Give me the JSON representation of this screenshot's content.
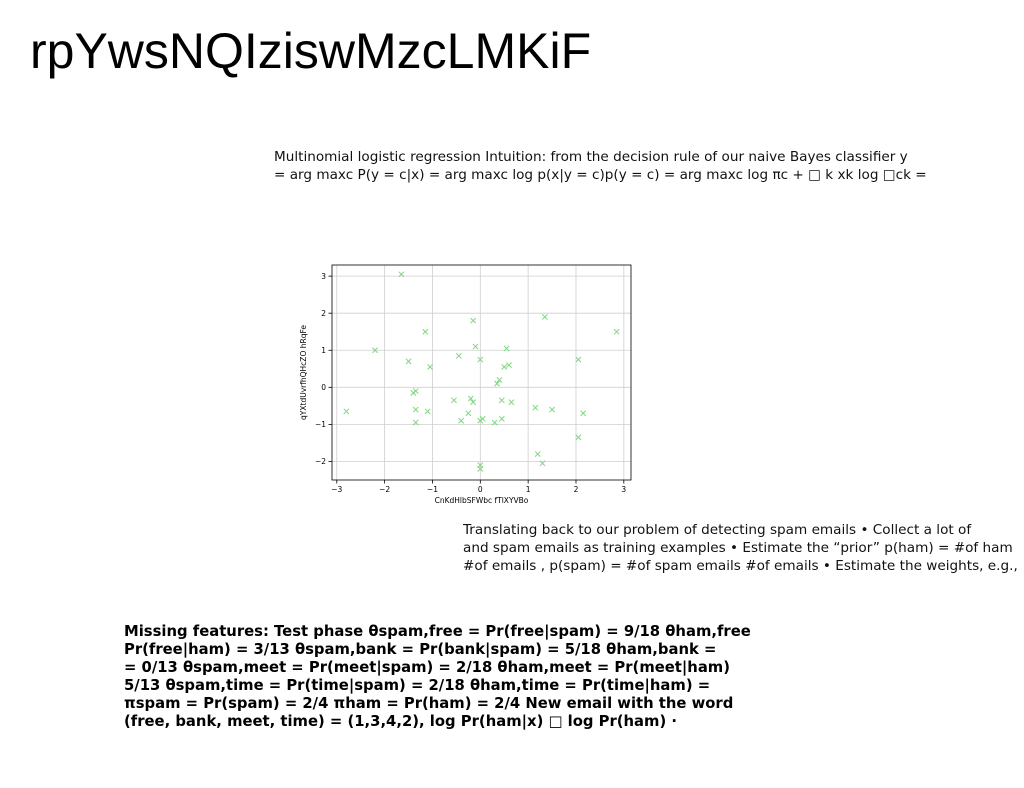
{
  "title": "rpYwsNQIziswMzcLMKiF",
  "paragraphs": {
    "p1": "Multinomial logistic regression Intuition: from the decision rule of our naive Bayes classifier y\n= arg maxc P(y = c|x) = arg maxc log p(x|y = c)p(y = c) = arg maxc log πc + □ k xk log □ck =",
    "p2": "Translating back to our problem of detecting spam emails • Collect a lot of\nand spam emails as training examples • Estimate the “prior” p(ham) = #of ham\n#of emails , p(spam) = #of spam emails #of emails • Estimate the weights, e.g.,",
    "p3": "Missing features: Test phase θspam,free = Pr(free|spam) = 9/18 θham,free\nPr(free|ham) = 3/13 θspam,bank = Pr(bank|spam) = 5/18 θham,bank =\n= 0/13 θspam,meet = Pr(meet|spam) = 2/18 θham,meet = Pr(meet|ham)\n5/13 θspam,time = Pr(time|spam) = 2/18 θham,time = Pr(time|ham) =\nπspam = Pr(spam) = 2/4 πham = Pr(ham) = 2/4 New email with the word\n(free, bank, meet, time) = (1,3,4,2), log Pr(ham|x) □ log Pr(ham) ·"
  },
  "chart_data": {
    "type": "scatter",
    "xlabel": "CnKdHlbSFWbc fTlXYVBo",
    "ylabel": "qYXtdUvrfhQHcZO hRqFe",
    "xlim": [
      -3.1,
      3.15
    ],
    "ylim": [
      -2.5,
      3.3
    ],
    "xticks": [
      -3,
      -2,
      -1,
      0,
      1,
      2,
      3
    ],
    "yticks": [
      -2,
      -1,
      0,
      1,
      2,
      3
    ],
    "xtick_labels": [
      "−3",
      "−2",
      "−1",
      "0",
      "1",
      "2",
      "3"
    ],
    "ytick_labels": [
      "−2",
      "−1",
      "0",
      "1",
      "2",
      "3"
    ],
    "grid": true,
    "marker": "x",
    "color": "#7fd67f",
    "points": [
      {
        "x": -1.65,
        "y": 3.05
      },
      {
        "x": -2.8,
        "y": -0.65
      },
      {
        "x": -2.2,
        "y": 1.0
      },
      {
        "x": -1.5,
        "y": 0.7
      },
      {
        "x": -1.35,
        "y": -0.1
      },
      {
        "x": -1.4,
        "y": -0.15
      },
      {
        "x": -1.35,
        "y": -0.6
      },
      {
        "x": -1.35,
        "y": -0.95
      },
      {
        "x": -1.15,
        "y": 1.5
      },
      {
        "x": -1.1,
        "y": -0.65
      },
      {
        "x": -1.05,
        "y": 0.55
      },
      {
        "x": -0.55,
        "y": -0.35
      },
      {
        "x": -0.45,
        "y": 0.85
      },
      {
        "x": -0.4,
        "y": -0.9
      },
      {
        "x": -0.25,
        "y": -0.7
      },
      {
        "x": -0.2,
        "y": -0.3
      },
      {
        "x": -0.15,
        "y": -0.4
      },
      {
        "x": -0.15,
        "y": 1.8
      },
      {
        "x": -0.1,
        "y": 1.1
      },
      {
        "x": 0.0,
        "y": 0.75
      },
      {
        "x": 0.0,
        "y": -0.9
      },
      {
        "x": 0.05,
        "y": -0.85
      },
      {
        "x": 0.0,
        "y": -2.1
      },
      {
        "x": 0.0,
        "y": -2.2
      },
      {
        "x": 0.3,
        "y": -0.95
      },
      {
        "x": 0.35,
        "y": 0.1
      },
      {
        "x": 0.4,
        "y": 0.2
      },
      {
        "x": 0.45,
        "y": -0.35
      },
      {
        "x": 0.45,
        "y": -0.85
      },
      {
        "x": 0.5,
        "y": 0.55
      },
      {
        "x": 0.55,
        "y": 1.05
      },
      {
        "x": 0.6,
        "y": 0.6
      },
      {
        "x": 0.65,
        "y": -0.4
      },
      {
        "x": 1.15,
        "y": -0.55
      },
      {
        "x": 1.2,
        "y": -1.8
      },
      {
        "x": 1.3,
        "y": -2.05
      },
      {
        "x": 1.35,
        "y": 1.9
      },
      {
        "x": 1.5,
        "y": -0.6
      },
      {
        "x": 2.05,
        "y": 0.75
      },
      {
        "x": 2.05,
        "y": -1.35
      },
      {
        "x": 2.15,
        "y": -0.7
      },
      {
        "x": 2.85,
        "y": 1.5
      }
    ]
  }
}
